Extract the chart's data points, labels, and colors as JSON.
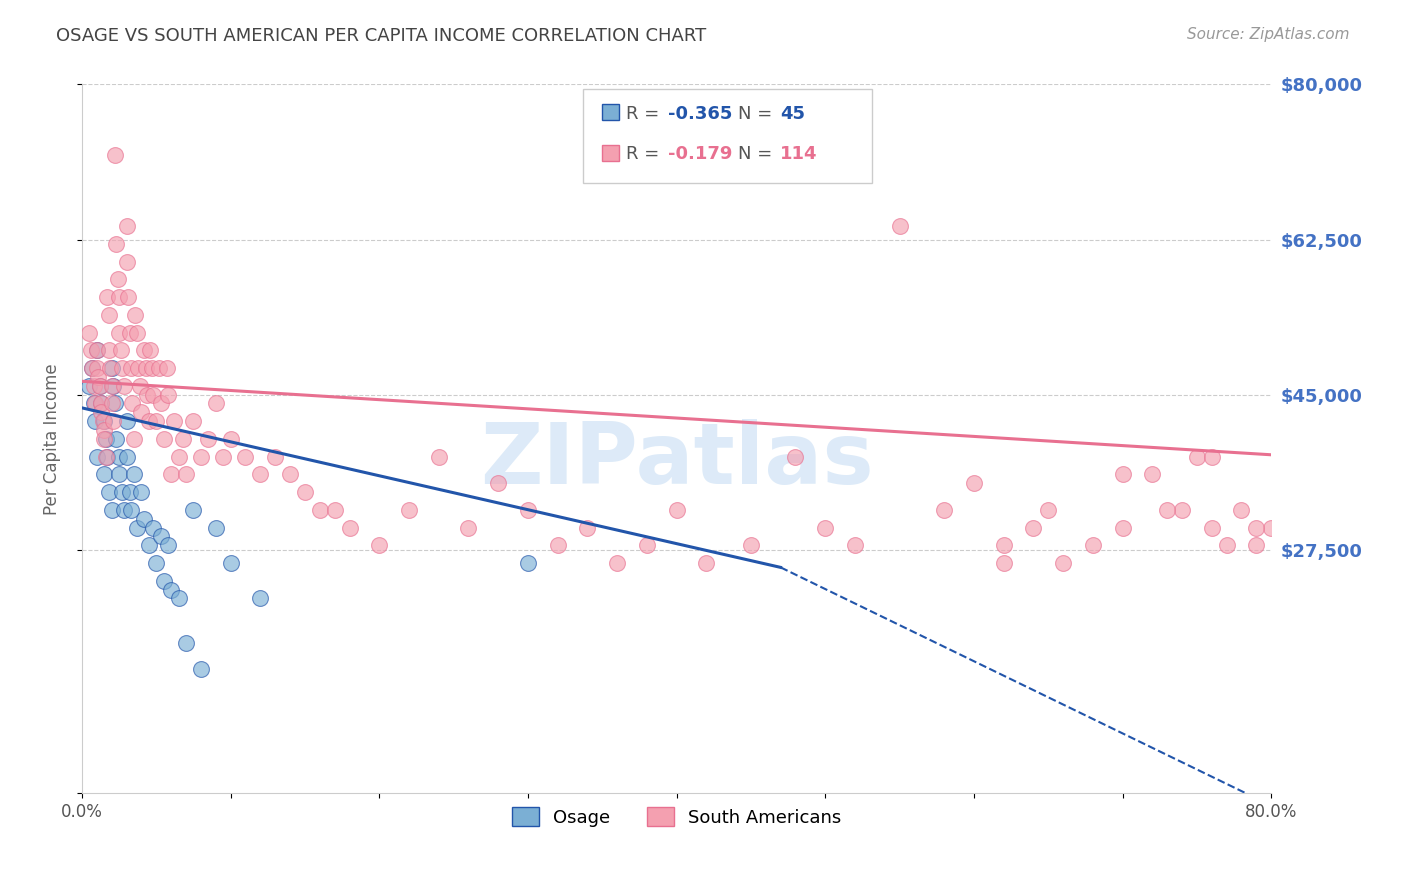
{
  "title": "OSAGE VS SOUTH AMERICAN PER CAPITA INCOME CORRELATION CHART",
  "source": "Source: ZipAtlas.com",
  "ylabel": "Per Capita Income",
  "xlim": [
    0.0,
    0.8
  ],
  "ylim": [
    0,
    80000
  ],
  "background_color": "#ffffff",
  "grid_color": "#cccccc",
  "ytick_color": "#4472c4",
  "blue_color": "#7bafd4",
  "pink_color": "#f4a0b0",
  "blue_line_color": "#2255aa",
  "pink_line_color": "#e87090",
  "osage_label": "Osage",
  "sa_label": "South Americans",
  "watermark": "ZIPatlas",
  "osage_x": [
    0.005,
    0.007,
    0.008,
    0.009,
    0.01,
    0.01,
    0.012,
    0.013,
    0.015,
    0.015,
    0.016,
    0.017,
    0.018,
    0.02,
    0.02,
    0.021,
    0.022,
    0.023,
    0.025,
    0.025,
    0.027,
    0.028,
    0.03,
    0.03,
    0.032,
    0.033,
    0.035,
    0.037,
    0.04,
    0.042,
    0.045,
    0.048,
    0.05,
    0.053,
    0.055,
    0.058,
    0.06,
    0.065,
    0.07,
    0.075,
    0.08,
    0.09,
    0.1,
    0.12,
    0.3
  ],
  "osage_y": [
    46000,
    48000,
    44000,
    42000,
    50000,
    38000,
    46000,
    44000,
    42000,
    36000,
    40000,
    38000,
    34000,
    48000,
    32000,
    46000,
    44000,
    40000,
    38000,
    36000,
    34000,
    32000,
    42000,
    38000,
    34000,
    32000,
    36000,
    30000,
    34000,
    31000,
    28000,
    30000,
    26000,
    29000,
    24000,
    28000,
    23000,
    22000,
    17000,
    32000,
    14000,
    30000,
    26000,
    22000,
    26000
  ],
  "sa_x": [
    0.005,
    0.006,
    0.007,
    0.008,
    0.009,
    0.01,
    0.01,
    0.011,
    0.012,
    0.013,
    0.013,
    0.014,
    0.015,
    0.015,
    0.016,
    0.017,
    0.018,
    0.018,
    0.019,
    0.02,
    0.02,
    0.021,
    0.022,
    0.023,
    0.024,
    0.025,
    0.025,
    0.026,
    0.027,
    0.028,
    0.03,
    0.03,
    0.031,
    0.032,
    0.033,
    0.034,
    0.035,
    0.036,
    0.037,
    0.038,
    0.039,
    0.04,
    0.042,
    0.043,
    0.044,
    0.045,
    0.046,
    0.047,
    0.048,
    0.05,
    0.052,
    0.053,
    0.055,
    0.057,
    0.058,
    0.06,
    0.062,
    0.065,
    0.068,
    0.07,
    0.075,
    0.08,
    0.085,
    0.09,
    0.095,
    0.1,
    0.11,
    0.12,
    0.13,
    0.14,
    0.15,
    0.16,
    0.17,
    0.18,
    0.2,
    0.22,
    0.24,
    0.26,
    0.28,
    0.3,
    0.32,
    0.34,
    0.36,
    0.38,
    0.4,
    0.42,
    0.45,
    0.48,
    0.5,
    0.52,
    0.55,
    0.58,
    0.6,
    0.62,
    0.64,
    0.66,
    0.68,
    0.7,
    0.72,
    0.74,
    0.75,
    0.76,
    0.77,
    0.78,
    0.79,
    0.8,
    0.62,
    0.65,
    0.7,
    0.73,
    0.76,
    0.79
  ],
  "sa_y": [
    52000,
    50000,
    48000,
    46000,
    44000,
    50000,
    48000,
    47000,
    46000,
    44000,
    43000,
    42000,
    41000,
    40000,
    38000,
    56000,
    54000,
    50000,
    48000,
    46000,
    44000,
    42000,
    72000,
    62000,
    58000,
    56000,
    52000,
    50000,
    48000,
    46000,
    64000,
    60000,
    56000,
    52000,
    48000,
    44000,
    40000,
    54000,
    52000,
    48000,
    46000,
    43000,
    50000,
    48000,
    45000,
    42000,
    50000,
    48000,
    45000,
    42000,
    48000,
    44000,
    40000,
    48000,
    45000,
    36000,
    42000,
    38000,
    40000,
    36000,
    42000,
    38000,
    40000,
    44000,
    38000,
    40000,
    38000,
    36000,
    38000,
    36000,
    34000,
    32000,
    32000,
    30000,
    28000,
    32000,
    38000,
    30000,
    35000,
    32000,
    28000,
    30000,
    26000,
    28000,
    32000,
    26000,
    28000,
    38000,
    30000,
    28000,
    64000,
    32000,
    35000,
    28000,
    30000,
    26000,
    28000,
    30000,
    36000,
    32000,
    38000,
    30000,
    28000,
    32000,
    28000,
    30000,
    26000,
    32000,
    36000,
    32000,
    38000,
    30000
  ]
}
